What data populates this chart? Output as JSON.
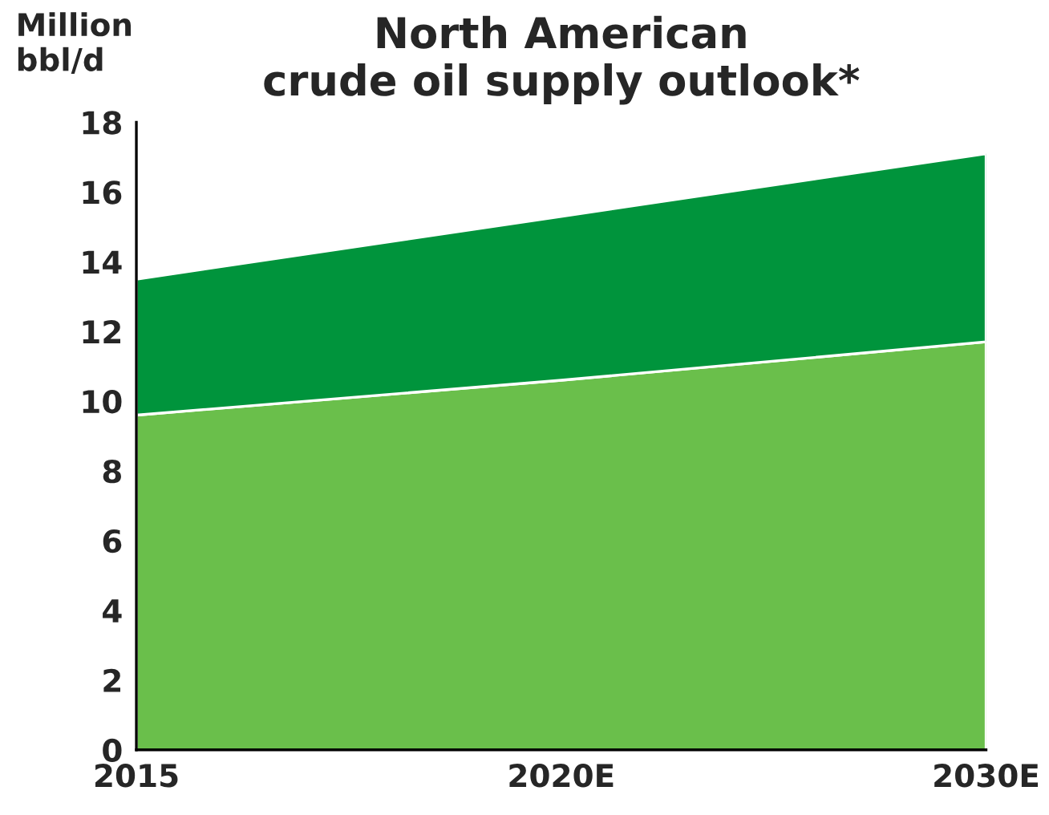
{
  "chart_data": {
    "type": "area",
    "title": "North American\ncrude oil supply outlook*",
    "ylabel": "Million\nbbl/d",
    "categories": [
      "2015",
      "2020E",
      "2030E"
    ],
    "stacked": true,
    "series": [
      {
        "color": "#6abf4b",
        "values": [
          9.6,
          10.6,
          11.7
        ]
      },
      {
        "color": "#00943c",
        "values": [
          3.9,
          4.7,
          5.4
        ]
      }
    ],
    "ylim": [
      0,
      18
    ],
    "yticks": [
      0,
      2,
      4,
      6,
      8,
      10,
      12,
      14,
      16,
      18
    ],
    "grid": false,
    "legend": false
  }
}
